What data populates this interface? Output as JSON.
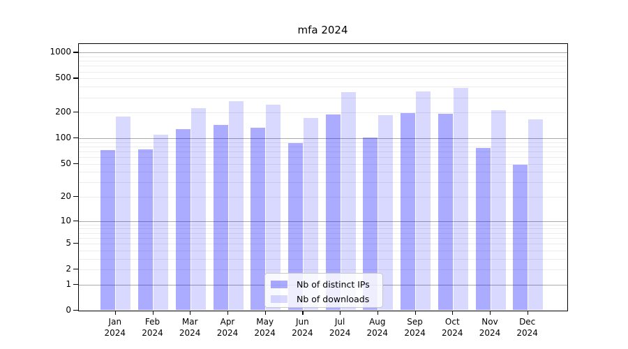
{
  "title": "mfa 2024",
  "colors": {
    "ips_bar": "rgba(0,0,255,0.33)",
    "downloads_bar": "rgba(0,0,255,0.15)",
    "major_grid": "#a9a9a9",
    "minor_grid": "#ececec",
    "spine": "#000000"
  },
  "legend": {
    "items": [
      {
        "label": "Nb of distinct IPs",
        "series": "ips"
      },
      {
        "label": "Nb of downloads",
        "series": "downloads"
      }
    ]
  },
  "y_axis": {
    "ticks": [
      {
        "label": "1000",
        "value": 1000
      },
      {
        "label": "500",
        "value": 500
      },
      {
        "label": "200",
        "value": 200
      },
      {
        "label": "100",
        "value": 100
      },
      {
        "label": "50",
        "value": 50
      },
      {
        "label": "20",
        "value": 20
      },
      {
        "label": "10",
        "value": 10
      },
      {
        "label": "5",
        "value": 5
      },
      {
        "label": "2",
        "value": 2
      },
      {
        "label": "1",
        "value": 1
      },
      {
        "label": "0",
        "value": 0
      }
    ]
  },
  "x_axis": {
    "labels": [
      {
        "month": "Jan",
        "year": "2024"
      },
      {
        "month": "Feb",
        "year": "2024"
      },
      {
        "month": "Mar",
        "year": "2024"
      },
      {
        "month": "Apr",
        "year": "2024"
      },
      {
        "month": "May",
        "year": "2024"
      },
      {
        "month": "Jun",
        "year": "2024"
      },
      {
        "month": "Jul",
        "year": "2024"
      },
      {
        "month": "Aug",
        "year": "2024"
      },
      {
        "month": "Sep",
        "year": "2024"
      },
      {
        "month": "Oct",
        "year": "2024"
      },
      {
        "month": "Nov",
        "year": "2024"
      },
      {
        "month": "Dec",
        "year": "2024"
      }
    ]
  },
  "chart_data": {
    "type": "bar",
    "title": "mfa 2024",
    "categories": [
      "Jan 2024",
      "Feb 2024",
      "Mar 2024",
      "Apr 2024",
      "May 2024",
      "Jun 2024",
      "Jul 2024",
      "Aug 2024",
      "Sep 2024",
      "Oct 2024",
      "Nov 2024",
      "Dec 2024"
    ],
    "series": [
      {
        "name": "Nb of distinct IPs",
        "values": [
          72,
          73,
          125,
          140,
          130,
          87,
          187,
          100,
          192,
          191,
          76,
          48
        ]
      },
      {
        "name": "Nb of downloads",
        "values": [
          177,
          109,
          222,
          265,
          245,
          170,
          340,
          182,
          348,
          378,
          210,
          164
        ]
      }
    ],
    "xlabel": "",
    "ylabel": "",
    "yscale": "log1p",
    "ylim": [
      0,
      1262
    ],
    "ytick_values": [
      0,
      1,
      2,
      5,
      10,
      20,
      50,
      100,
      200,
      500,
      1000
    ],
    "grid": true,
    "legend_position": "lower center"
  }
}
